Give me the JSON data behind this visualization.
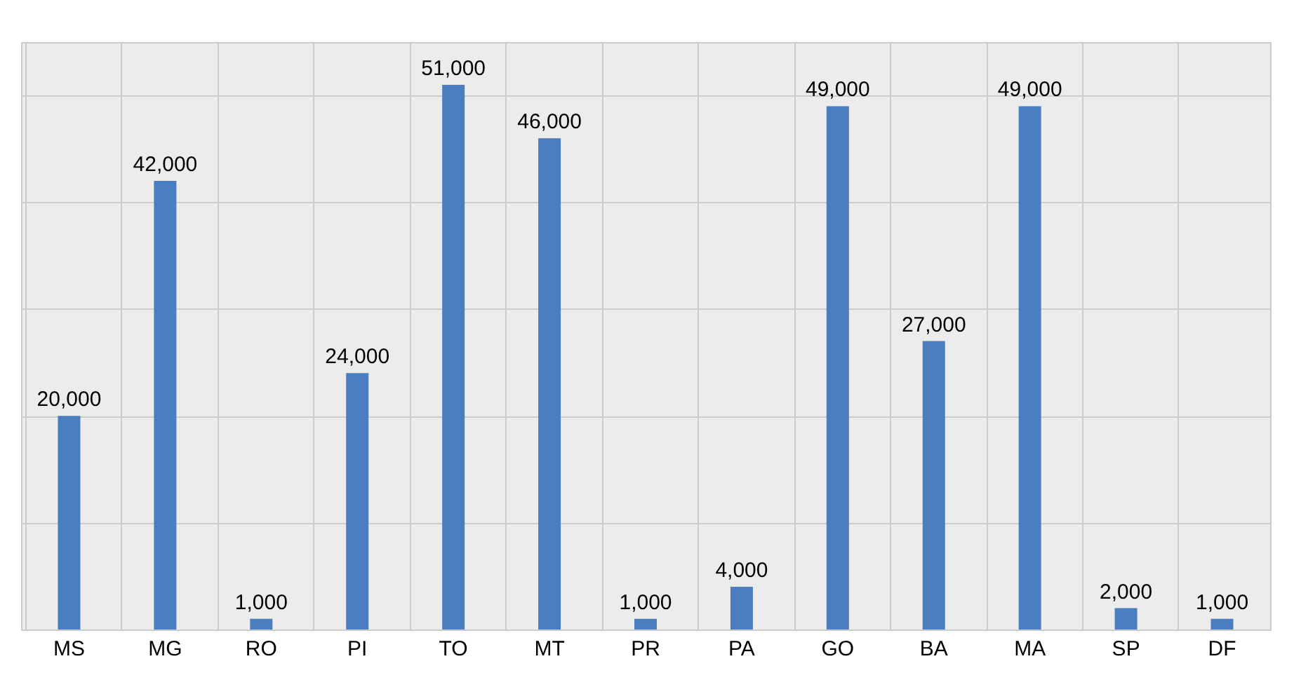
{
  "chart_data": {
    "type": "bar",
    "categories": [
      "MS",
      "MG",
      "RO",
      "PI",
      "TO",
      "MT",
      "PR",
      "PA",
      "GO",
      "BA",
      "MA",
      "SP",
      "DF"
    ],
    "values": [
      20000,
      42000,
      1000,
      24000,
      51000,
      46000,
      1000,
      4000,
      49000,
      27000,
      49000,
      2000,
      1000
    ],
    "value_labels": [
      "20,000",
      "42,000",
      "1,000",
      "24,000",
      "51,000",
      "46,000",
      "1,000",
      "4,000",
      "49,000",
      "27,000",
      "49,000",
      "2,000",
      "1,000"
    ],
    "color": "#4a7ebf",
    "tick_labels": "x",
    "grid": true
  }
}
